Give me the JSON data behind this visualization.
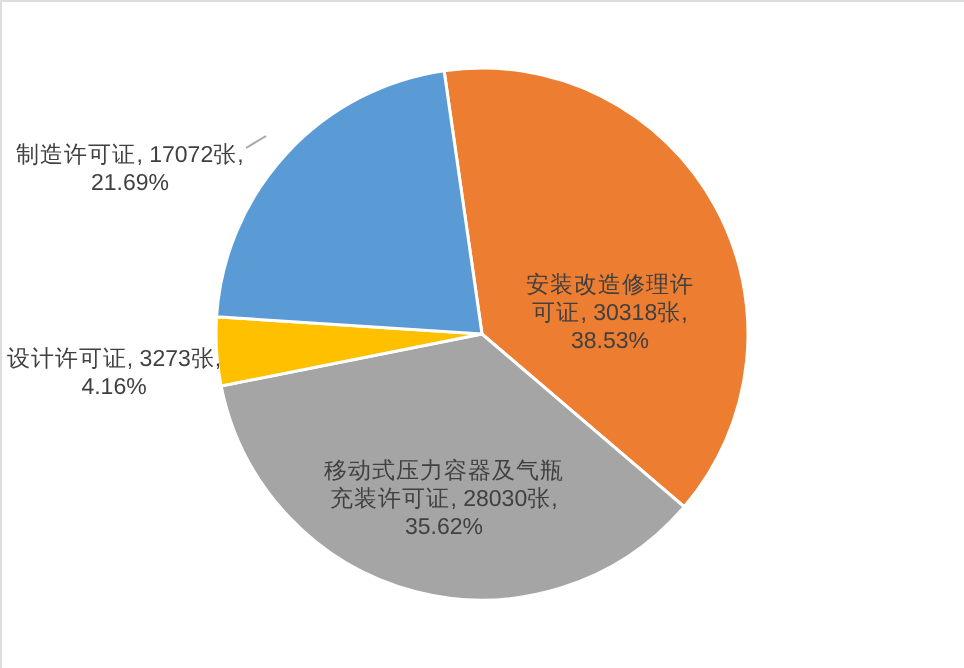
{
  "chart_data": {
    "type": "pie",
    "categories": [
      "安装改造修理许可证",
      "移动式压力容器及气瓶充装许可证",
      "设计许可证",
      "制造许可证"
    ],
    "values": [
      30318,
      28030,
      3273,
      17072
    ],
    "colors": [
      "#ed7d31",
      "#a5a5a5",
      "#ffc000",
      "#5b9bd5"
    ],
    "value_labels": [
      "30318张, 38.53%",
      "28030张, 35.62%",
      "3273张, 4.16%",
      "17072张, 21.69%"
    ]
  }
}
